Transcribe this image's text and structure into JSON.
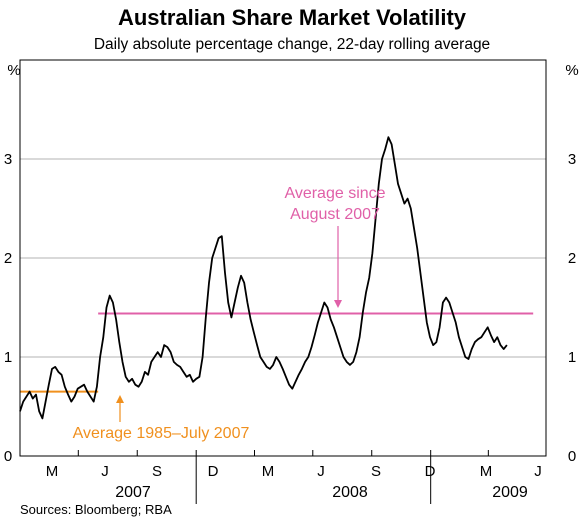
{
  "chart_data": {
    "type": "line",
    "title": "Australian Share Market Volatility",
    "subtitle": "Daily absolute percentage change, 22-day rolling average",
    "unit_left": "%",
    "unit_right": "%",
    "ylim": [
      0,
      4
    ],
    "yticks": [
      0,
      1,
      2,
      3
    ],
    "grid": true,
    "xlim": [
      "2007-04-01",
      "2009-06-30"
    ],
    "month_ticks": [
      "M",
      "J",
      "S",
      "D",
      "M",
      "J",
      "S",
      "D",
      "M",
      "J"
    ],
    "years": [
      "2007",
      "2008",
      "2009"
    ],
    "source": "Sources: Bloomberg; RBA",
    "colors": {
      "series": "#000000",
      "avg_since_aug2007": "#e060a8",
      "avg_1985_jul2007": "#f0901e",
      "grid": "#b3b3b3"
    },
    "annotations": {
      "pink_line1": "Average since",
      "pink_line2": "August 2007",
      "orange": "Average 1985–July 2007"
    },
    "reference_lines": [
      {
        "name": "Average 1985–July 2007",
        "value": 0.65,
        "from": "2007-04-01",
        "to": "2007-08-01"
      },
      {
        "name": "Average since August 2007",
        "value": 1.44,
        "from": "2007-08-01",
        "to": "2009-06-10"
      }
    ],
    "series": [
      {
        "points": [
          [
            "2007-04-01",
            0.45
          ],
          [
            "2007-04-06",
            0.55
          ],
          [
            "2007-04-11",
            0.6
          ],
          [
            "2007-04-16",
            0.65
          ],
          [
            "2007-04-21",
            0.58
          ],
          [
            "2007-04-26",
            0.62
          ],
          [
            "2007-05-01",
            0.45
          ],
          [
            "2007-05-06",
            0.38
          ],
          [
            "2007-05-11",
            0.55
          ],
          [
            "2007-05-16",
            0.72
          ],
          [
            "2007-05-21",
            0.88
          ],
          [
            "2007-05-26",
            0.9
          ],
          [
            "2007-05-31",
            0.85
          ],
          [
            "2007-06-05",
            0.82
          ],
          [
            "2007-06-10",
            0.7
          ],
          [
            "2007-06-15",
            0.62
          ],
          [
            "2007-06-20",
            0.55
          ],
          [
            "2007-06-25",
            0.6
          ],
          [
            "2007-06-30",
            0.68
          ],
          [
            "2007-07-05",
            0.7
          ],
          [
            "2007-07-10",
            0.72
          ],
          [
            "2007-07-15",
            0.65
          ],
          [
            "2007-07-20",
            0.6
          ],
          [
            "2007-07-25",
            0.55
          ],
          [
            "2007-07-30",
            0.7
          ],
          [
            "2007-08-04",
            1.0
          ],
          [
            "2007-08-09",
            1.2
          ],
          [
            "2007-08-14",
            1.5
          ],
          [
            "2007-08-19",
            1.62
          ],
          [
            "2007-08-24",
            1.55
          ],
          [
            "2007-08-29",
            1.38
          ],
          [
            "2007-09-03",
            1.15
          ],
          [
            "2007-09-08",
            0.95
          ],
          [
            "2007-09-13",
            0.8
          ],
          [
            "2007-09-18",
            0.75
          ],
          [
            "2007-09-23",
            0.78
          ],
          [
            "2007-09-28",
            0.72
          ],
          [
            "2007-10-03",
            0.7
          ],
          [
            "2007-10-08",
            0.75
          ],
          [
            "2007-10-13",
            0.85
          ],
          [
            "2007-10-18",
            0.82
          ],
          [
            "2007-10-23",
            0.95
          ],
          [
            "2007-10-28",
            1.0
          ],
          [
            "2007-11-02",
            1.05
          ],
          [
            "2007-11-07",
            1.0
          ],
          [
            "2007-11-12",
            1.12
          ],
          [
            "2007-11-17",
            1.1
          ],
          [
            "2007-11-22",
            1.05
          ],
          [
            "2007-11-27",
            0.95
          ],
          [
            "2007-12-02",
            0.92
          ],
          [
            "2007-12-07",
            0.9
          ],
          [
            "2007-12-12",
            0.85
          ],
          [
            "2007-12-17",
            0.8
          ],
          [
            "2007-12-22",
            0.82
          ],
          [
            "2007-12-27",
            0.75
          ],
          [
            "2008-01-01",
            0.78
          ],
          [
            "2008-01-06",
            0.8
          ],
          [
            "2008-01-11",
            1.0
          ],
          [
            "2008-01-16",
            1.4
          ],
          [
            "2008-01-21",
            1.75
          ],
          [
            "2008-01-26",
            2.0
          ],
          [
            "2008-01-31",
            2.1
          ],
          [
            "2008-02-05",
            2.2
          ],
          [
            "2008-02-10",
            2.22
          ],
          [
            "2008-02-15",
            1.85
          ],
          [
            "2008-02-20",
            1.55
          ],
          [
            "2008-02-25",
            1.4
          ],
          [
            "2008-03-01",
            1.55
          ],
          [
            "2008-03-06",
            1.7
          ],
          [
            "2008-03-11",
            1.82
          ],
          [
            "2008-03-16",
            1.75
          ],
          [
            "2008-03-21",
            1.55
          ],
          [
            "2008-03-26",
            1.38
          ],
          [
            "2008-03-31",
            1.25
          ],
          [
            "2008-04-05",
            1.12
          ],
          [
            "2008-04-10",
            1.0
          ],
          [
            "2008-04-15",
            0.95
          ],
          [
            "2008-04-20",
            0.9
          ],
          [
            "2008-04-25",
            0.88
          ],
          [
            "2008-04-30",
            0.92
          ],
          [
            "2008-05-05",
            1.0
          ],
          [
            "2008-05-10",
            0.95
          ],
          [
            "2008-05-15",
            0.88
          ],
          [
            "2008-05-20",
            0.8
          ],
          [
            "2008-05-25",
            0.72
          ],
          [
            "2008-05-30",
            0.68
          ],
          [
            "2008-06-04",
            0.75
          ],
          [
            "2008-06-09",
            0.82
          ],
          [
            "2008-06-14",
            0.88
          ],
          [
            "2008-06-19",
            0.95
          ],
          [
            "2008-06-24",
            1.0
          ],
          [
            "2008-06-29",
            1.1
          ],
          [
            "2008-07-04",
            1.22
          ],
          [
            "2008-07-09",
            1.35
          ],
          [
            "2008-07-14",
            1.45
          ],
          [
            "2008-07-19",
            1.55
          ],
          [
            "2008-07-24",
            1.5
          ],
          [
            "2008-07-29",
            1.38
          ],
          [
            "2008-08-03",
            1.3
          ],
          [
            "2008-08-08",
            1.2
          ],
          [
            "2008-08-13",
            1.1
          ],
          [
            "2008-08-18",
            1.0
          ],
          [
            "2008-08-23",
            0.95
          ],
          [
            "2008-08-28",
            0.92
          ],
          [
            "2008-09-02",
            0.95
          ],
          [
            "2008-09-07",
            1.05
          ],
          [
            "2008-09-12",
            1.2
          ],
          [
            "2008-09-17",
            1.45
          ],
          [
            "2008-09-22",
            1.65
          ],
          [
            "2008-09-27",
            1.8
          ],
          [
            "2008-10-02",
            2.05
          ],
          [
            "2008-10-07",
            2.4
          ],
          [
            "2008-10-12",
            2.75
          ],
          [
            "2008-10-17",
            3.0
          ],
          [
            "2008-10-22",
            3.1
          ],
          [
            "2008-10-27",
            3.22
          ],
          [
            "2008-11-01",
            3.15
          ],
          [
            "2008-11-06",
            2.95
          ],
          [
            "2008-11-11",
            2.75
          ],
          [
            "2008-11-16",
            2.65
          ],
          [
            "2008-11-21",
            2.55
          ],
          [
            "2008-11-26",
            2.6
          ],
          [
            "2008-12-01",
            2.5
          ],
          [
            "2008-12-06",
            2.3
          ],
          [
            "2008-12-11",
            2.1
          ],
          [
            "2008-12-16",
            1.85
          ],
          [
            "2008-12-21",
            1.6
          ],
          [
            "2008-12-26",
            1.35
          ],
          [
            "2008-12-31",
            1.2
          ],
          [
            "2009-01-05",
            1.12
          ],
          [
            "2009-01-10",
            1.15
          ],
          [
            "2009-01-15",
            1.3
          ],
          [
            "2009-01-20",
            1.55
          ],
          [
            "2009-01-25",
            1.6
          ],
          [
            "2009-01-30",
            1.55
          ],
          [
            "2009-02-04",
            1.45
          ],
          [
            "2009-02-09",
            1.35
          ],
          [
            "2009-02-14",
            1.2
          ],
          [
            "2009-02-19",
            1.1
          ],
          [
            "2009-02-24",
            1.0
          ],
          [
            "2009-03-01",
            0.98
          ],
          [
            "2009-03-06",
            1.08
          ],
          [
            "2009-03-11",
            1.15
          ],
          [
            "2009-03-16",
            1.18
          ],
          [
            "2009-03-21",
            1.2
          ],
          [
            "2009-03-26",
            1.25
          ],
          [
            "2009-03-31",
            1.3
          ],
          [
            "2009-04-05",
            1.22
          ],
          [
            "2009-04-10",
            1.15
          ],
          [
            "2009-04-15",
            1.2
          ],
          [
            "2009-04-20",
            1.12
          ],
          [
            "2009-04-25",
            1.08
          ],
          [
            "2009-04-30",
            1.12
          ]
        ]
      }
    ]
  }
}
